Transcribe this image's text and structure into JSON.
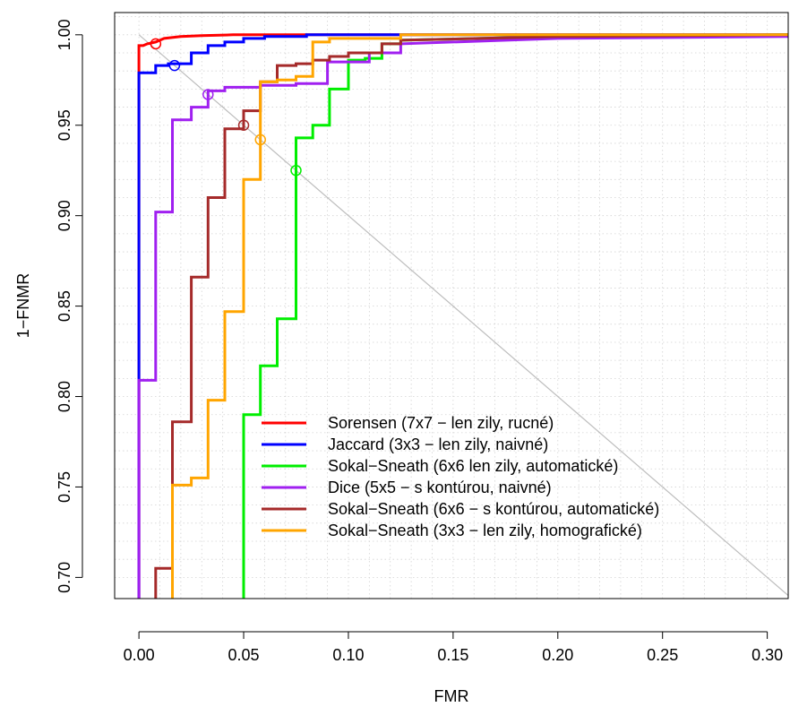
{
  "chart_data": {
    "type": "line",
    "title": "",
    "xlabel": "FMR",
    "ylabel": "1−FNMR",
    "xlim": [
      -0.0116,
      0.31
    ],
    "ylim": [
      0.6883,
      1.0123
    ],
    "x_ticks": [
      0.0,
      0.05,
      0.1,
      0.15,
      0.2,
      0.25,
      0.3
    ],
    "x_tick_labels": [
      "0.00",
      "0.05",
      "0.10",
      "0.15",
      "0.20",
      "0.25",
      "0.30"
    ],
    "y_ticks": [
      0.7,
      0.75,
      0.8,
      0.85,
      0.9,
      0.95,
      1.0
    ],
    "y_tick_labels": [
      "0.70",
      "0.75",
      "0.80",
      "0.85",
      "0.90",
      "0.95",
      "1.00"
    ],
    "grid": true,
    "diagonal_reference_line": true,
    "legend_position": "bottom-right",
    "series": [
      {
        "name": "Sorensen (7x7 − len zily, rucné)",
        "color": "#ff0000",
        "x": [
          0.0,
          0.0,
          0.002,
          0.004,
          0.008,
          0.012,
          0.02,
          0.03,
          0.045,
          0.31
        ],
        "y": [
          0.688,
          0.994,
          0.994,
          0.995,
          0.996,
          0.998,
          0.999,
          0.9995,
          1.0,
          1.0
        ],
        "eer_marker": {
          "x": 0.008,
          "y": 0.995
        }
      },
      {
        "name": "Jaccard (3x3 − len zily, naivné)",
        "color": "#0000ff",
        "x": [
          0.0,
          0.0,
          0.008,
          0.008,
          0.014,
          0.014,
          0.025,
          0.025,
          0.033,
          0.033,
          0.041,
          0.041,
          0.05,
          0.05,
          0.06,
          0.06,
          0.08,
          0.08,
          0.31
        ],
        "y": [
          0.688,
          0.979,
          0.979,
          0.983,
          0.983,
          0.984,
          0.984,
          0.99,
          0.99,
          0.994,
          0.994,
          0.996,
          0.996,
          0.998,
          0.998,
          0.999,
          0.999,
          1.0,
          1.0
        ],
        "eer_marker": {
          "x": 0.017,
          "y": 0.983
        }
      },
      {
        "name": "Sokal−Sneath (6x6 len zily, automatické)",
        "color": "#00ee00",
        "x": [
          0.05,
          0.05,
          0.058,
          0.058,
          0.066,
          0.066,
          0.075,
          0.075,
          0.083,
          0.083,
          0.091,
          0.091,
          0.1,
          0.1,
          0.108,
          0.108,
          0.116,
          0.116,
          0.125,
          0.125,
          0.2,
          0.31
        ],
        "y": [
          0.688,
          0.79,
          0.79,
          0.817,
          0.817,
          0.843,
          0.843,
          0.943,
          0.943,
          0.95,
          0.95,
          0.97,
          0.97,
          0.986,
          0.986,
          0.987,
          0.987,
          0.995,
          0.995,
          0.997,
          0.999,
          1.0
        ],
        "eer_marker": {
          "x": 0.075,
          "y": 0.925
        }
      },
      {
        "name": "Dice (5x5 − s kontúrou, naivné)",
        "color": "#a020f0",
        "x": [
          0.0,
          0.0,
          0.008,
          0.008,
          0.016,
          0.016,
          0.025,
          0.025,
          0.033,
          0.033,
          0.041,
          0.041,
          0.058,
          0.058,
          0.075,
          0.075,
          0.09,
          0.09,
          0.11,
          0.11,
          0.125,
          0.125,
          0.2,
          0.31
        ],
        "y": [
          0.688,
          0.809,
          0.809,
          0.902,
          0.902,
          0.953,
          0.953,
          0.96,
          0.96,
          0.969,
          0.969,
          0.971,
          0.971,
          0.972,
          0.972,
          0.973,
          0.973,
          0.985,
          0.985,
          0.99,
          0.99,
          0.995,
          0.998,
          0.999
        ],
        "eer_marker": {
          "x": 0.033,
          "y": 0.967
        }
      },
      {
        "name": "Sokal−Sneath (6x6 − s kontúrou, automatické)",
        "color": "#a52a2a",
        "x": [
          0.008,
          0.008,
          0.016,
          0.016,
          0.025,
          0.025,
          0.033,
          0.033,
          0.041,
          0.041,
          0.05,
          0.05,
          0.058,
          0.058,
          0.066,
          0.066,
          0.075,
          0.075,
          0.083,
          0.083,
          0.091,
          0.091,
          0.1,
          0.1,
          0.116,
          0.116,
          0.125,
          0.125,
          0.2,
          0.31
        ],
        "y": [
          0.688,
          0.705,
          0.705,
          0.786,
          0.786,
          0.866,
          0.866,
          0.91,
          0.91,
          0.948,
          0.948,
          0.958,
          0.958,
          0.974,
          0.974,
          0.983,
          0.983,
          0.984,
          0.984,
          0.986,
          0.986,
          0.988,
          0.988,
          0.99,
          0.99,
          0.995,
          0.995,
          0.997,
          0.999,
          1.0
        ],
        "eer_marker": {
          "x": 0.05,
          "y": 0.95
        }
      },
      {
        "name": "Sokal−Sneath (3x3 − len zily, homografické)",
        "color": "#ffa500",
        "x": [
          0.016,
          0.016,
          0.025,
          0.025,
          0.033,
          0.033,
          0.041,
          0.041,
          0.05,
          0.05,
          0.058,
          0.058,
          0.066,
          0.066,
          0.075,
          0.075,
          0.083,
          0.083,
          0.091,
          0.091,
          0.125,
          0.125,
          0.2,
          0.31
        ],
        "y": [
          0.688,
          0.751,
          0.751,
          0.755,
          0.755,
          0.798,
          0.798,
          0.847,
          0.847,
          0.92,
          0.92,
          0.974,
          0.974,
          0.975,
          0.975,
          0.977,
          0.977,
          0.996,
          0.996,
          0.998,
          0.998,
          1.0,
          1.0,
          1.0
        ],
        "eer_marker": {
          "x": 0.058,
          "y": 0.942
        }
      }
    ]
  }
}
